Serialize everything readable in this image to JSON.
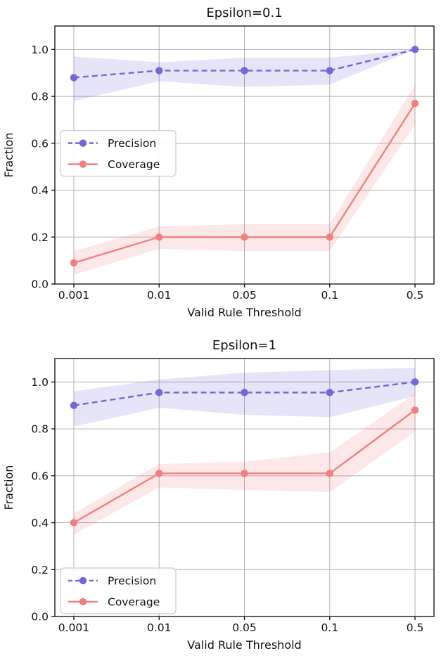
{
  "figure": {
    "background": "#ffffff",
    "text_color": "#111111",
    "grid_color": "#b0b0b0",
    "spine_color": "#1a1a1a"
  },
  "chart_data": [
    {
      "type": "line",
      "title": "Epsilon=0.1",
      "xlabel": "Valid Rule Threshold",
      "ylabel": "Fraction",
      "categories": [
        "0.001",
        "0.01",
        "0.05",
        "0.1",
        "0.5"
      ],
      "ylim": [
        0,
        1.1
      ],
      "yticks": [
        0.0,
        0.2,
        0.4,
        0.6,
        0.8,
        1.0
      ],
      "grid": true,
      "legend": {
        "position": "center-left",
        "entries": [
          "Precision",
          "Coverage"
        ]
      },
      "series": [
        {
          "name": "Precision",
          "color": "#7467d6",
          "band_alpha": 0.18,
          "line_style": "dashed",
          "marker": "circle",
          "values": [
            0.88,
            0.91,
            0.91,
            0.91,
            1.0
          ],
          "band_lower": [
            0.78,
            0.865,
            0.84,
            0.85,
            1.0
          ],
          "band_upper": [
            0.97,
            0.945,
            0.965,
            0.965,
            1.0
          ]
        },
        {
          "name": "Coverage",
          "color": "#f08080",
          "band_alpha": 0.18,
          "line_style": "solid",
          "marker": "circle",
          "values": [
            0.09,
            0.2,
            0.2,
            0.2,
            0.77
          ],
          "band_lower": [
            0.04,
            0.15,
            0.14,
            0.14,
            0.68
          ],
          "band_upper": [
            0.14,
            0.245,
            0.255,
            0.255,
            0.85
          ]
        }
      ]
    },
    {
      "type": "line",
      "title": "Epsilon=1",
      "xlabel": "Valid Rule Threshold",
      "ylabel": "Fraction",
      "categories": [
        "0.001",
        "0.01",
        "0.05",
        "0.1",
        "0.5"
      ],
      "ylim": [
        0,
        1.1
      ],
      "yticks": [
        0.0,
        0.2,
        0.4,
        0.6,
        0.8,
        1.0
      ],
      "grid": true,
      "legend": {
        "position": "lower-left",
        "entries": [
          "Precision",
          "Coverage"
        ]
      },
      "series": [
        {
          "name": "Precision",
          "color": "#7467d6",
          "band_alpha": 0.18,
          "line_style": "dashed",
          "marker": "circle",
          "values": [
            0.9,
            0.955,
            0.955,
            0.955,
            1.0
          ],
          "band_lower": [
            0.81,
            0.89,
            0.86,
            0.85,
            0.94
          ],
          "band_upper": [
            0.96,
            1.01,
            1.04,
            1.05,
            1.06
          ]
        },
        {
          "name": "Coverage",
          "color": "#f08080",
          "band_alpha": 0.18,
          "line_style": "solid",
          "marker": "circle",
          "values": [
            0.4,
            0.61,
            0.61,
            0.61,
            0.88
          ],
          "band_lower": [
            0.35,
            0.55,
            0.54,
            0.53,
            0.79
          ],
          "band_upper": [
            0.44,
            0.65,
            0.66,
            0.7,
            0.95
          ]
        }
      ]
    }
  ]
}
